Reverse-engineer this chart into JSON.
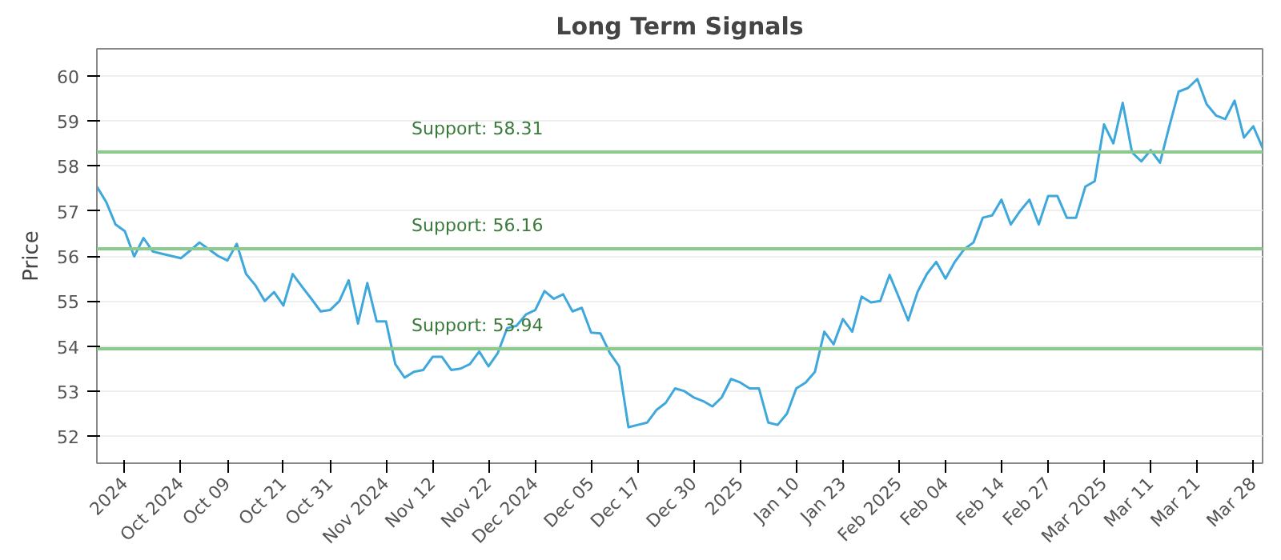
{
  "chart_data": {
    "type": "line",
    "title": "Long Term Signals",
    "ylabel": "Price",
    "categories": [
      null,
      null,
      null,
      "2024",
      null,
      null,
      null,
      null,
      null,
      "Oct 2024",
      null,
      null,
      null,
      null,
      "Oct 09",
      null,
      null,
      null,
      null,
      null,
      "Oct 21",
      null,
      null,
      null,
      null,
      "Oct 31",
      null,
      null,
      null,
      null,
      null,
      "Nov 2024",
      null,
      null,
      null,
      null,
      "Nov 12",
      null,
      null,
      null,
      null,
      null,
      "Nov 22",
      null,
      null,
      null,
      null,
      "Dec 2024",
      null,
      null,
      null,
      null,
      null,
      "Dec 05",
      null,
      null,
      null,
      null,
      "Dec 17",
      null,
      null,
      null,
      null,
      null,
      "Dec 30",
      null,
      null,
      null,
      null,
      "2025",
      null,
      null,
      null,
      null,
      null,
      "Jan 10",
      null,
      null,
      null,
      null,
      "Jan 23",
      null,
      null,
      null,
      null,
      null,
      "Feb 2025",
      null,
      null,
      null,
      null,
      "Feb 04",
      null,
      null,
      null,
      null,
      null,
      "Feb 14",
      null,
      null,
      null,
      null,
      "Feb 27",
      null,
      null,
      null,
      null,
      null,
      "Mar 2025",
      null,
      null,
      null,
      null,
      "Mar 11",
      null,
      null,
      null,
      null,
      "Mar 21",
      null,
      null,
      null,
      null,
      null,
      "Mar 28",
      null
    ],
    "series": [
      {
        "color": "#3ea8dc",
        "values": [
          57.54,
          57.2,
          56.7,
          56.55,
          55.99,
          56.4,
          56.1,
          56.05,
          56.0,
          55.95,
          56.12,
          56.3,
          56.15,
          56.0,
          55.9,
          56.27,
          55.6,
          55.35,
          55.0,
          55.2,
          54.9,
          55.6,
          55.32,
          55.05,
          54.77,
          54.8,
          55.0,
          55.46,
          54.5,
          55.4,
          54.55,
          54.55,
          53.6,
          53.3,
          53.43,
          53.47,
          53.76,
          53.76,
          53.47,
          53.5,
          53.6,
          53.88,
          53.55,
          53.85,
          54.4,
          54.45,
          54.7,
          54.8,
          55.22,
          55.05,
          55.15,
          54.77,
          54.85,
          54.3,
          54.28,
          53.85,
          53.55,
          52.2,
          52.25,
          52.3,
          52.58,
          52.74,
          53.06,
          53.0,
          52.86,
          52.78,
          52.66,
          52.86,
          53.27,
          53.19,
          53.06,
          53.06,
          52.3,
          52.25,
          52.5,
          53.06,
          53.19,
          53.43,
          54.32,
          54.04,
          54.6,
          54.32,
          55.1,
          54.97,
          55.0,
          55.58,
          55.08,
          54.57,
          55.2,
          55.6,
          55.87,
          55.5,
          55.87,
          56.15,
          56.3,
          56.85,
          56.9,
          57.25,
          56.7,
          57.0,
          57.25,
          56.7,
          57.33,
          57.33,
          56.85,
          56.85,
          57.54,
          57.66,
          58.92,
          58.5,
          59.4,
          58.3,
          58.1,
          58.35,
          58.07,
          58.88,
          59.65,
          59.73,
          59.93,
          59.37,
          59.12,
          59.04,
          59.45,
          58.63,
          58.88,
          58.4
        ]
      }
    ],
    "ylim": [
      51.4,
      60.6
    ],
    "yticks": [
      52,
      53,
      54,
      55,
      56,
      57,
      58,
      59,
      60
    ],
    "ref_lines": [
      {
        "axis": "y",
        "value": 58.31,
        "label": "Support: 58.31",
        "color": "#8cc98c"
      },
      {
        "axis": "y",
        "value": 56.16,
        "label": "Support: 56.16",
        "color": "#8cc98c"
      },
      {
        "axis": "y",
        "value": 53.94,
        "label": "Support: 53.94",
        "color": "#8cc98c"
      }
    ],
    "grid": "y",
    "marker": "none",
    "line_style": "solid"
  }
}
